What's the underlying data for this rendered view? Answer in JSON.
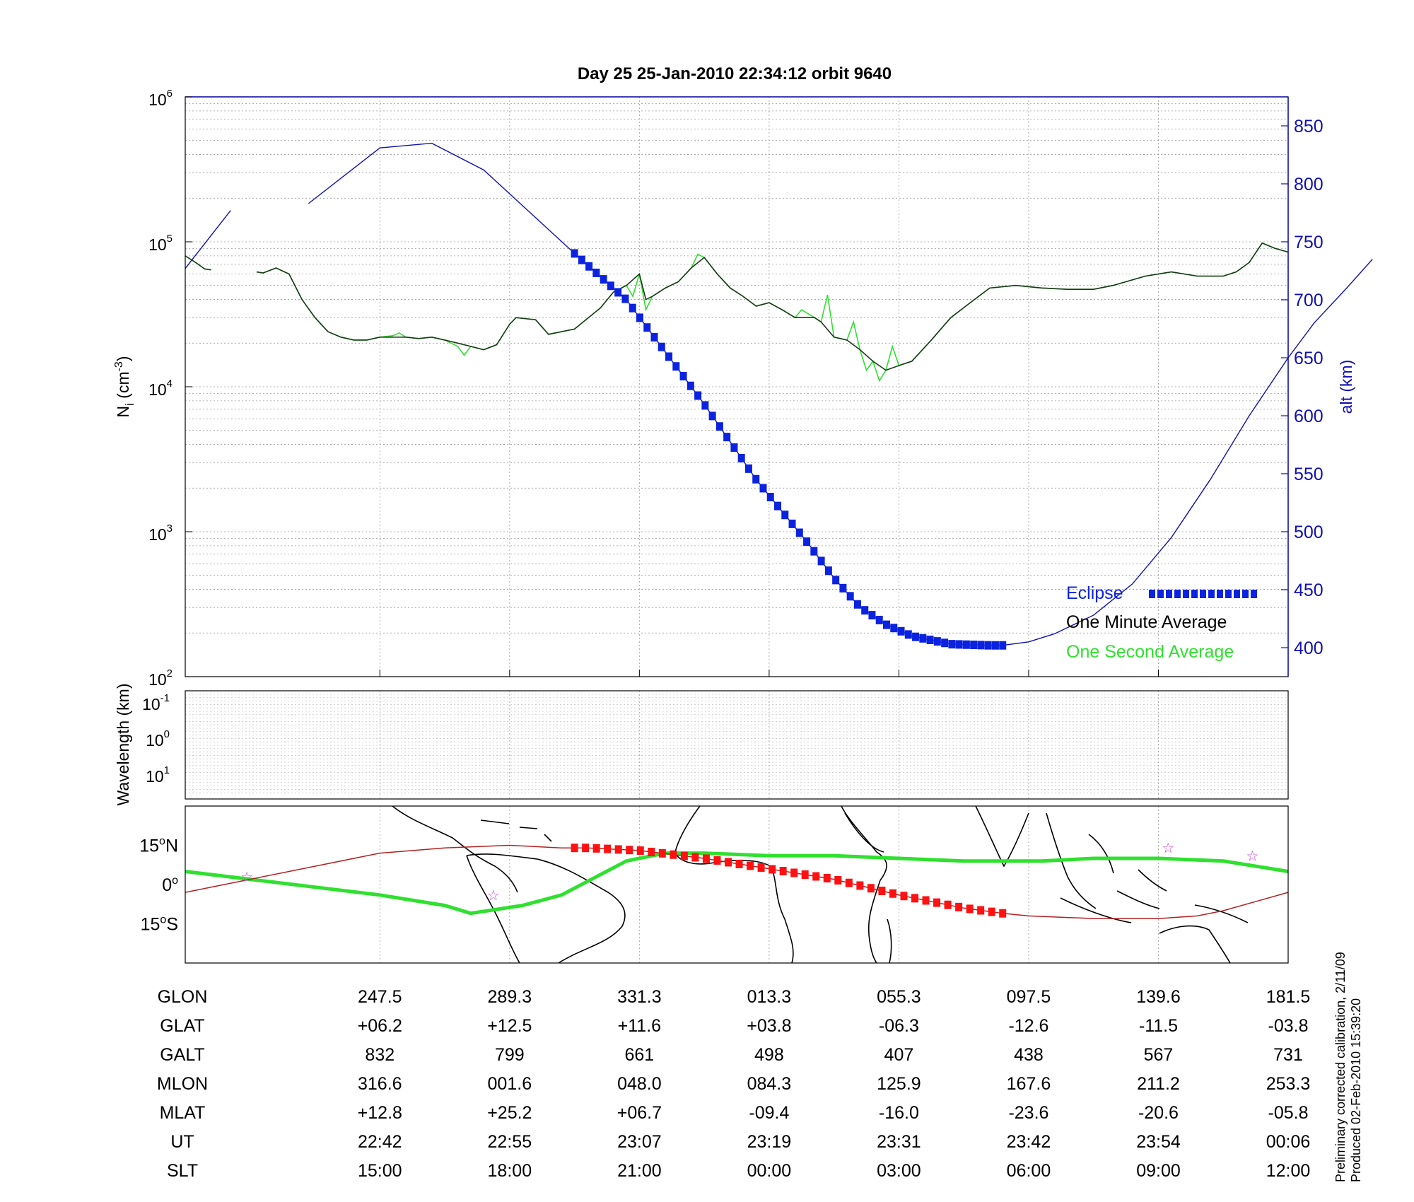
{
  "colors": {
    "blue": "#1010b0",
    "eclipse": "#0b23e0",
    "minute": "#1a3a1a",
    "second": "#2fe02f",
    "track": "#ff1111",
    "orbit": "#b22222",
    "star": "#cc44cc",
    "grid": "#9a9a9a"
  },
  "chart_data": {
    "type": "line",
    "title": "Day 25  25-Jan-2010 22:34:12   orbit 9640",
    "density": {
      "ylabel": "N_i (cm^-3)",
      "ylabel_main": "N",
      "ylabel_sub": "i",
      "ylabel_paren": "(cm",
      "ylabel_exp": "-3",
      "ylabel_close": ")",
      "scale": "log",
      "ylim": [
        100,
        1000000
      ],
      "yticks": [
        {
          "base": "10",
          "exp": "2"
        },
        {
          "base": "10",
          "exp": "3"
        },
        {
          "base": "10",
          "exp": "4"
        },
        {
          "base": "10",
          "exp": "5"
        },
        {
          "base": "10",
          "exp": "6"
        }
      ],
      "one_minute_average": {
        "name": "One Minute Average",
        "segments": [
          [
            [
              0,
              80000
            ],
            [
              10,
              75000
            ],
            [
              20,
              70000
            ],
            [
              30,
              65000
            ],
            [
              40,
              64000
            ]
          ],
          [
            [
              110,
              62000
            ],
            [
              120,
              61000
            ],
            [
              140,
              66000
            ],
            [
              160,
              60000
            ],
            [
              180,
              40000
            ],
            [
              200,
              30000
            ],
            [
              220,
              24000
            ],
            [
              240,
              22000
            ],
            [
              260,
              21000
            ],
            [
              280,
              21000
            ],
            [
              300,
              22000
            ],
            [
              320,
              22000
            ],
            [
              340,
              22000
            ],
            [
              360,
              21500
            ],
            [
              380,
              22000
            ],
            [
              400,
              21000
            ],
            [
              420,
              20000
            ],
            [
              440,
              19000
            ],
            [
              460,
              18000
            ],
            [
              480,
              19500
            ],
            [
              500,
              27000
            ],
            [
              510,
              30000
            ],
            [
              540,
              29000
            ],
            [
              560,
              23000
            ],
            [
              600,
              25000
            ],
            [
              640,
              35000
            ],
            [
              660,
              45000
            ],
            [
              680,
              50000
            ],
            [
              700,
              60000
            ],
            [
              710,
              40000
            ],
            [
              720,
              42000
            ],
            [
              740,
              48000
            ],
            [
              760,
              53000
            ],
            [
              780,
              66000
            ],
            [
              800,
              78000
            ],
            [
              820,
              60000
            ],
            [
              840,
              48000
            ],
            [
              860,
              42000
            ],
            [
              880,
              36000
            ],
            [
              900,
              38000
            ],
            [
              920,
              34000
            ],
            [
              940,
              30000
            ],
            [
              970,
              30000
            ],
            [
              980,
              28000
            ],
            [
              1000,
              22000
            ],
            [
              1020,
              21000
            ],
            [
              1040,
              18000
            ],
            [
              1060,
              15000
            ],
            [
              1080,
              13000
            ],
            [
              1100,
              14000
            ],
            [
              1120,
              15000
            ],
            [
              1150,
              21000
            ],
            [
              1180,
              30000
            ],
            [
              1210,
              38000
            ],
            [
              1240,
              48000
            ],
            [
              1280,
              50000
            ],
            [
              1320,
              48000
            ],
            [
              1360,
              47000
            ],
            [
              1400,
              47000
            ],
            [
              1430,
              50000
            ],
            [
              1480,
              58000
            ],
            [
              1520,
              62000
            ],
            [
              1560,
              58000
            ],
            [
              1600,
              58000
            ],
            [
              1620,
              62000
            ],
            [
              1640,
              72000
            ],
            [
              1660,
              98000
            ],
            [
              1680,
              90000
            ],
            [
              1700,
              85000
            ]
          ]
        ]
      },
      "one_second_average": {
        "name": "One Second Average",
        "segments": [
          [
            [
              0,
              80000
            ],
            [
              10,
              75000
            ],
            [
              20,
              70000
            ],
            [
              30,
              65000
            ],
            [
              40,
              64000
            ]
          ],
          [
            [
              110,
              62000
            ],
            [
              120,
              61000
            ],
            [
              140,
              66000
            ],
            [
              160,
              60000
            ],
            [
              180,
              40000
            ],
            [
              200,
              30000
            ],
            [
              220,
              24000
            ],
            [
              240,
              22000
            ],
            [
              260,
              21000
            ],
            [
              280,
              21000
            ],
            [
              300,
              22000
            ],
            [
              320,
              22500
            ],
            [
              330,
              23500
            ],
            [
              340,
              22000
            ],
            [
              360,
              21500
            ],
            [
              380,
              22000
            ],
            [
              400,
              21000
            ],
            [
              420,
              19000
            ],
            [
              430,
              16500
            ],
            [
              440,
              19000
            ],
            [
              460,
              18000
            ],
            [
              480,
              19500
            ],
            [
              500,
              27000
            ],
            [
              510,
              30000
            ],
            [
              540,
              29000
            ],
            [
              560,
              23000
            ],
            [
              600,
              25000
            ],
            [
              640,
              35000
            ],
            [
              660,
              45000
            ],
            [
              680,
              50000
            ],
            [
              690,
              42000
            ],
            [
              700,
              60000
            ],
            [
              710,
              34000
            ],
            [
              720,
              42000
            ],
            [
              740,
              48000
            ],
            [
              760,
              53000
            ],
            [
              780,
              66000
            ],
            [
              790,
              82000
            ],
            [
              800,
              78000
            ],
            [
              820,
              60000
            ],
            [
              840,
              48000
            ],
            [
              860,
              42000
            ],
            [
              880,
              36000
            ],
            [
              900,
              38000
            ],
            [
              920,
              34000
            ],
            [
              940,
              30000
            ],
            [
              950,
              34000
            ],
            [
              970,
              30000
            ],
            [
              980,
              28000
            ],
            [
              990,
              43000
            ],
            [
              1000,
              22000
            ],
            [
              1020,
              21000
            ],
            [
              1030,
              28000
            ],
            [
              1040,
              18000
            ],
            [
              1050,
              13000
            ],
            [
              1060,
              15000
            ],
            [
              1070,
              11000
            ],
            [
              1080,
              13000
            ],
            [
              1090,
              19000
            ],
            [
              1100,
              14000
            ],
            [
              1120,
              15000
            ],
            [
              1150,
              21000
            ],
            [
              1180,
              30000
            ],
            [
              1210,
              38000
            ],
            [
              1240,
              48000
            ],
            [
              1280,
              50000
            ],
            [
              1320,
              48000
            ],
            [
              1360,
              47000
            ],
            [
              1400,
              47000
            ],
            [
              1430,
              50000
            ],
            [
              1480,
              58000
            ],
            [
              1520,
              62000
            ],
            [
              1560,
              58000
            ],
            [
              1600,
              58000
            ],
            [
              1620,
              62000
            ],
            [
              1640,
              72000
            ],
            [
              1660,
              98000
            ],
            [
              1680,
              90000
            ],
            [
              1700,
              85000
            ]
          ]
        ]
      }
    },
    "altitude": {
      "ylabel": "alt (km)",
      "ylim": [
        375,
        875
      ],
      "yticks": [
        400,
        450,
        500,
        550,
        600,
        650,
        700,
        750,
        800,
        850
      ],
      "segments": [
        [
          [
            0,
            727
          ],
          [
            70,
            777
          ]
        ],
        [
          [
            190,
            783
          ],
          [
            300,
            831
          ],
          [
            380,
            835
          ],
          [
            460,
            812
          ],
          [
            600,
            740
          ]
        ]
      ],
      "descent": [
        [
          600,
          740
        ],
        [
          680,
          700
        ],
        [
          760,
          640
        ],
        [
          800,
          610
        ],
        [
          880,
          545
        ],
        [
          960,
          490
        ],
        [
          1000,
          460
        ],
        [
          1040,
          435
        ],
        [
          1080,
          420
        ],
        [
          1120,
          410
        ],
        [
          1180,
          403
        ],
        [
          1240,
          402
        ],
        [
          1260,
          402
        ]
      ],
      "ascent": [
        [
          1260,
          402
        ],
        [
          1300,
          405
        ],
        [
          1340,
          412
        ],
        [
          1400,
          428
        ],
        [
          1460,
          455
        ],
        [
          1520,
          495
        ],
        [
          1580,
          545
        ],
        [
          1640,
          600
        ],
        [
          1700,
          650
        ],
        [
          1740,
          680
        ],
        [
          1790,
          710
        ],
        [
          1830,
          735
        ]
      ],
      "eclipse_markers": {
        "name": "Eclipse",
        "x_start": 600,
        "x_end": 1260,
        "count": 60
      }
    },
    "wavelength": {
      "ylabel": "Wavelength (km)",
      "yticks": [
        {
          "base": "10",
          "exp": "-1"
        },
        {
          "base": "10",
          "exp": "0"
        },
        {
          "base": "10",
          "exp": "1"
        }
      ]
    },
    "map": {
      "type": "map",
      "lat_ticks": [
        {
          "deg": "15",
          "sym": "o",
          "hem": "N"
        },
        {
          "deg": "0",
          "sym": "o",
          "hem": ""
        },
        {
          "deg": "15",
          "sym": "o",
          "hem": "S"
        }
      ],
      "magnetic_equator": [
        [
          0,
          5
        ],
        [
          100,
          2
        ],
        [
          200,
          -1
        ],
        [
          300,
          -4
        ],
        [
          400,
          -8
        ],
        [
          440,
          -11
        ],
        [
          520,
          -8
        ],
        [
          580,
          -4
        ],
        [
          680,
          9
        ],
        [
          740,
          12
        ],
        [
          800,
          12
        ],
        [
          900,
          11
        ],
        [
          1000,
          11
        ],
        [
          1100,
          10
        ],
        [
          1200,
          9
        ],
        [
          1320,
          9
        ],
        [
          1400,
          10
        ],
        [
          1500,
          10
        ],
        [
          1600,
          9
        ],
        [
          1700,
          5
        ]
      ],
      "orbit_track": [
        [
          0,
          -3
        ],
        [
          100,
          2
        ],
        [
          200,
          7
        ],
        [
          300,
          12
        ],
        [
          400,
          14
        ],
        [
          500,
          15
        ],
        [
          580,
          14
        ],
        [
          620,
          14
        ],
        [
          700,
          13
        ],
        [
          800,
          10
        ],
        [
          900,
          6
        ],
        [
          1000,
          2
        ],
        [
          1100,
          -4
        ],
        [
          1200,
          -9
        ],
        [
          1260,
          -11
        ],
        [
          1300,
          -12
        ],
        [
          1400,
          -13
        ],
        [
          1500,
          -13
        ],
        [
          1560,
          -12
        ],
        [
          1600,
          -10
        ],
        [
          1700,
          -3
        ]
      ],
      "eclipse_track_count": 40,
      "stars": [
        [
          95,
          3
        ],
        [
          475,
          -4
        ],
        [
          1515,
          14
        ],
        [
          1645,
          11
        ]
      ]
    },
    "x_axis": {
      "ticks": [
        300,
        500,
        700,
        900,
        1100,
        1300,
        1500,
        1700
      ],
      "rows": [
        {
          "label": "GLON",
          "values": [
            "247.5",
            "289.3",
            "331.3",
            "013.3",
            "055.3",
            "097.5",
            "139.6",
            "181.5"
          ]
        },
        {
          "label": "GLAT",
          "values": [
            "+06.2",
            "+12.5",
            "+11.6",
            "+03.8",
            "-06.3",
            "-12.6",
            "-11.5",
            "-03.8"
          ]
        },
        {
          "label": "GALT",
          "values": [
            "832",
            "799",
            "661",
            "498",
            "407",
            "438",
            "567",
            "731"
          ]
        },
        {
          "label": "MLON",
          "values": [
            "316.6",
            "001.6",
            "048.0",
            "084.3",
            "125.9",
            "167.6",
            "211.2",
            "253.3"
          ]
        },
        {
          "label": "MLAT",
          "values": [
            "+12.8",
            "+25.2",
            "+06.7",
            "-09.4",
            "-16.0",
            "-23.6",
            "-20.6",
            "-05.8"
          ]
        },
        {
          "label": "UT",
          "values": [
            "22:42",
            "22:55",
            "23:07",
            "23:19",
            "23:31",
            "23:42",
            "23:54",
            "00:06"
          ]
        },
        {
          "label": "SLT",
          "values": [
            "15:00",
            "18:00",
            "21:00",
            "00:00",
            "03:00",
            "06:00",
            "09:00",
            "12:00"
          ]
        }
      ]
    },
    "legend": {
      "placement": "lower-right",
      "entries": [
        "Eclipse",
        "One Minute Average",
        "One Second Average"
      ]
    }
  },
  "footnote": {
    "line1": "Preliminary corrected calibration, 2/11/09",
    "line2": "Produced 02-Feb-2010 15:39:20"
  }
}
